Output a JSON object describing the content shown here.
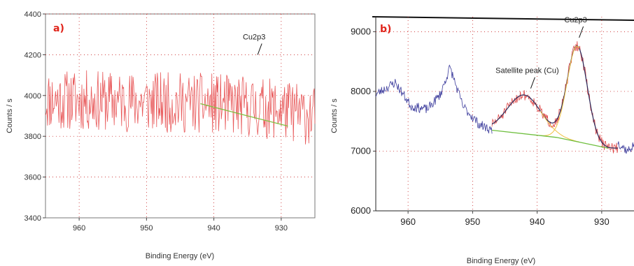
{
  "chart_data": [
    {
      "panel_label": "a)",
      "type": "line",
      "xlabel": "Binding Energy (eV)",
      "ylabel": "Counts / s",
      "xlim": [
        965,
        925
      ],
      "ylim": [
        3400,
        4400
      ],
      "x_reversed": true,
      "xticks": [
        960,
        950,
        940,
        930
      ],
      "yticks": [
        3400,
        3600,
        3800,
        4000,
        4200,
        4400
      ],
      "grid": true,
      "colors": {
        "spectrum": "#e8595a",
        "background": "#7fbf3f",
        "grid": "#c00000",
        "axes": "#555555"
      },
      "annotations": [
        {
          "text": "Cu2p3",
          "x": 933.5,
          "y": 4200
        }
      ],
      "series": [
        {
          "role": "spectrum",
          "seed": 11,
          "noise": 150,
          "x_range": [
            965,
            925
          ],
          "points": [
            [
              965,
              3980
            ],
            [
              940,
              3960
            ],
            [
              930,
              3930
            ],
            [
              925,
              3900
            ]
          ]
        },
        {
          "role": "background",
          "x": [
            942,
            935,
            929
          ],
          "y": [
            3960,
            3900,
            3850
          ]
        }
      ]
    },
    {
      "panel_label": "b)",
      "type": "line",
      "xlabel": "Binding Energy (eV)",
      "ylabel": "Counts / s",
      "xlim": [
        965,
        925
      ],
      "ylim": [
        6000,
        9250
      ],
      "x_reversed": true,
      "xticks": [
        960,
        950,
        940,
        930
      ],
      "yticks": [
        6000,
        7000,
        8000,
        9000
      ],
      "grid": true,
      "colors": {
        "raw": "#3c3c9c",
        "fit_raw": "#e04a4a",
        "envelope": "#2a2a5a",
        "background": "#6fbf3f",
        "component": "#f0c040",
        "grid": "#c00000",
        "axes": "#222222"
      },
      "annotations": [
        {
          "text": "Satellite peak (Cu)",
          "x": 941,
          "y": 8050
        },
        {
          "text": "Cu2p3",
          "x": 933.5,
          "y": 8900
        }
      ],
      "series": [
        {
          "role": "raw",
          "seed": 23,
          "noise": 80,
          "x_range": [
            965,
            947
          ],
          "points": [
            [
              965,
              7950
            ],
            [
              962,
              8150
            ],
            [
              959.5,
              7750
            ],
            [
              957,
              7700
            ],
            [
              955,
              7950
            ],
            [
              953.5,
              8400
            ],
            [
              951.5,
              7750
            ],
            [
              949,
              7450
            ],
            [
              947,
              7350
            ]
          ]
        },
        {
          "role": "raw",
          "seed": 37,
          "noise": 80,
          "x_range": [
            927.5,
            925
          ],
          "points": [
            [
              927.5,
              7150
            ],
            [
              926,
              7000
            ],
            [
              925,
              7100
            ]
          ]
        },
        {
          "role": "fit_raw",
          "seed": 51,
          "noise": 90,
          "x_range": [
            947,
            927.5
          ],
          "model": "fit"
        },
        {
          "role": "envelope",
          "x_range": [
            947,
            927.5
          ],
          "model": "fit"
        },
        {
          "role": "component",
          "x_range": [
            939.5,
            933.5
          ],
          "model": "components"
        },
        {
          "role": "background",
          "x": [
            947,
            937,
            929
          ],
          "y": [
            7350,
            7230,
            7050
          ]
        }
      ],
      "fit_model": {
        "baseline": [
          [
            947,
            7350
          ],
          [
            937,
            7230
          ],
          [
            929,
            7050
          ]
        ],
        "peaks": [
          {
            "center": 942,
            "height": 650,
            "sigma": 2.6
          },
          {
            "center": 933.8,
            "height": 1600,
            "sigma": 1.55
          }
        ]
      }
    }
  ]
}
